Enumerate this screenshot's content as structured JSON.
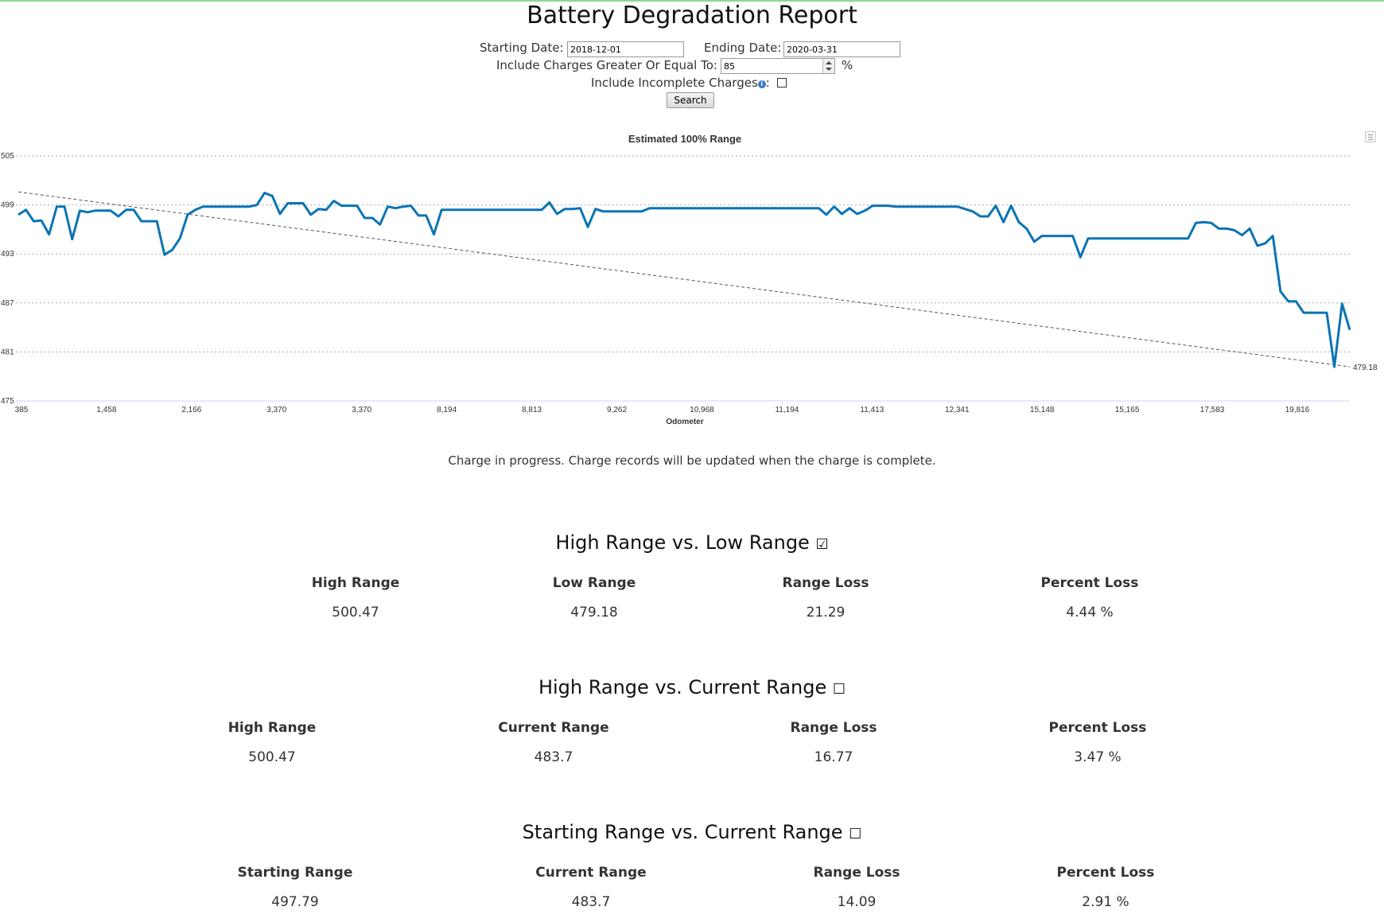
{
  "page_title": "Battery Degradation Report",
  "form": {
    "start_label": "Starting Date:",
    "start_value": "2018-12-01",
    "end_label": "Ending Date:",
    "end_value": "2020-03-31",
    "charge_label": "Include Charges Greater Or Equal To:",
    "charge_value": "85",
    "charge_unit": "%",
    "incomplete_label": "Include Incomplete Charges",
    "incomplete_suffix": ":",
    "incomplete_checked": false,
    "info_glyph": "i",
    "search_label": "Search"
  },
  "status_text": "Charge in progress. Charge records will be updated when the charge is complete.",
  "sections": [
    {
      "title": "High Range vs. Low Range",
      "check_glyph": "☑",
      "headers": [
        "High Range",
        "Low Range",
        "Range Loss",
        "Percent Loss"
      ],
      "values": [
        "500.47",
        "479.18",
        "21.29",
        "4.44 %"
      ]
    },
    {
      "title": "High Range vs. Current Range",
      "check_glyph": "☐",
      "headers": [
        "High Range",
        "Current Range",
        "Range Loss",
        "Percent Loss"
      ],
      "values": [
        "500.47",
        "483.7",
        "16.77",
        "3.47 %"
      ]
    },
    {
      "title": "Starting Range vs. Current Range",
      "check_glyph": "☐",
      "headers": [
        "Starting Range",
        "Current Range",
        "Range Loss",
        "Percent Loss"
      ],
      "values": [
        "497.79",
        "483.7",
        "14.09",
        "2.91 %"
      ]
    }
  ],
  "chart_data": {
    "type": "line",
    "title": "Estimated 100% Range",
    "xlabel": "Odometer",
    "ylabel": "",
    "ylim": [
      475,
      505
    ],
    "yticks": [
      475,
      481,
      487,
      493,
      499,
      505
    ],
    "xtick_labels": [
      "385",
      "1,458",
      "2,166",
      "3,370",
      "3,370",
      "8,194",
      "8,813",
      "9,262",
      "10,968",
      "11,194",
      "11,413",
      "12,341",
      "15,148",
      "15,165",
      "17,583",
      "19,816"
    ],
    "grid": true,
    "legend": "none",
    "series_color": "#0a74b5",
    "trend_color": "#555555",
    "trend_end_label": "479.18",
    "trend": [
      500.6,
      479.18
    ],
    "values": [
      497.8,
      498.4,
      497.0,
      497.1,
      495.4,
      498.8,
      498.8,
      494.8,
      498.3,
      498.1,
      498.3,
      498.3,
      498.3,
      497.6,
      498.4,
      498.4,
      497.0,
      497.0,
      497.0,
      492.9,
      493.5,
      494.9,
      497.8,
      498.4,
      498.8,
      498.8,
      498.8,
      498.8,
      498.8,
      498.8,
      498.8,
      499.0,
      500.47,
      500.1,
      497.9,
      499.2,
      499.2,
      499.2,
      497.8,
      498.5,
      498.4,
      499.5,
      498.9,
      498.9,
      498.9,
      497.4,
      497.4,
      496.6,
      498.8,
      498.6,
      498.8,
      498.9,
      497.7,
      497.7,
      495.4,
      498.4,
      498.4,
      498.4,
      498.4,
      498.4,
      498.4,
      498.4,
      498.4,
      498.4,
      498.4,
      498.4,
      498.4,
      498.4,
      498.4,
      499.3,
      497.9,
      498.5,
      498.5,
      498.6,
      496.3,
      498.5,
      498.2,
      498.2,
      498.2,
      498.2,
      498.2,
      498.2,
      498.6,
      498.6,
      498.6,
      498.6,
      498.6,
      498.6,
      498.6,
      498.6,
      498.6,
      498.6,
      498.6,
      498.6,
      498.6,
      498.6,
      498.6,
      498.6,
      498.6,
      498.6,
      498.6,
      498.6,
      498.6,
      498.6,
      498.6,
      497.8,
      498.8,
      497.9,
      498.6,
      497.9,
      498.3,
      498.9,
      498.9,
      498.9,
      498.8,
      498.8,
      498.8,
      498.8,
      498.8,
      498.8,
      498.8,
      498.8,
      498.8,
      498.5,
      498.2,
      497.6,
      497.6,
      498.9,
      496.9,
      498.9,
      496.9,
      496.1,
      494.5,
      495.2,
      495.2,
      495.2,
      495.2,
      495.2,
      492.6,
      494.9,
      494.9,
      494.9,
      494.9,
      494.9,
      494.9,
      494.9,
      494.9,
      494.9,
      494.9,
      494.9,
      494.9,
      494.9,
      494.9,
      496.8,
      496.9,
      496.8,
      496.1,
      496.1,
      495.9,
      495.3,
      496.1,
      494.0,
      494.3,
      495.2,
      488.4,
      487.2,
      487.2,
      485.8,
      485.8,
      485.8,
      485.8,
      479.18,
      486.9,
      483.7
    ]
  }
}
